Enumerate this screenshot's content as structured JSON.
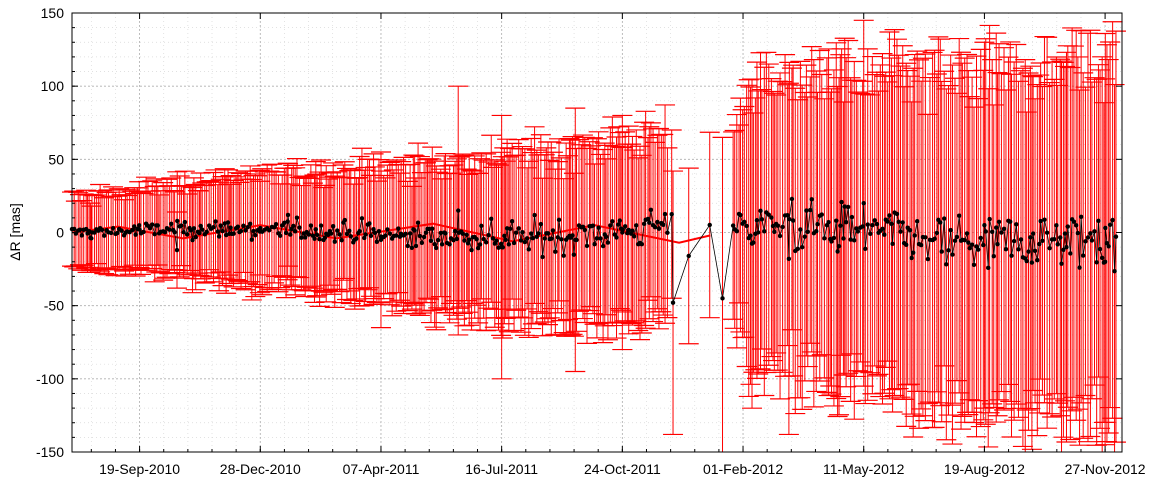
{
  "chart_data": {
    "type": "scatter",
    "title": "",
    "xlabel": "",
    "ylabel": "ΔR [mas]",
    "x_tick_labels": [
      "19-Sep-2010",
      "28-Dec-2010",
      "07-Apr-2011",
      "16-Jul-2011",
      "24-Oct-2011",
      "01-Feb-2012",
      "11-May-2012",
      "19-Aug-2012",
      "27-Nov-2012"
    ],
    "xlim": [
      "2010-07-25",
      "2012-12-11"
    ],
    "y_tick_labels": [
      "150",
      "100",
      "50",
      "0",
      "-50",
      "-100",
      "-150"
    ],
    "ylim": [
      -150,
      150
    ],
    "grid": true,
    "series": [
      {
        "style": "points with error bars, joined by thin line",
        "color": "#000000",
        "error_color": "#ff0000",
        "segments": [
          {
            "x": [
              "2010-07-25",
              "2012-02-04"
            ],
            "y_mean": 0,
            "y_amplitude_start": 6,
            "y_amplitude_end": 18,
            "error_start": 24,
            "error_end": 72
          },
          {
            "x": [
              "2012-02-04",
              "2012-12-07"
            ],
            "y_mean": 0,
            "y_amplitude_start": 22,
            "y_amplitude_end": 28,
            "error_start": 100,
            "error_end": 125
          }
        ],
        "sample_points": [
          {
            "x": "2010-08-10",
            "y": -4,
            "err": 22
          },
          {
            "x": "2010-09-19",
            "y": 2,
            "err": 26
          },
          {
            "x": "2010-10-20",
            "y": -12,
            "err": 26
          },
          {
            "x": "2010-12-28",
            "y": 3,
            "err": 32
          },
          {
            "x": "2011-01-20",
            "y": 12,
            "err": 35
          },
          {
            "x": "2011-04-07",
            "y": -5,
            "err": 60
          },
          {
            "x": "2011-06-10",
            "y": 15,
            "err": 85
          },
          {
            "x": "2011-07-16",
            "y": -10,
            "err": 90
          },
          {
            "x": "2011-09-15",
            "y": -5,
            "err": 90
          },
          {
            "x": "2011-10-24",
            "y": 0,
            "err": 80
          },
          {
            "x": "2011-12-05",
            "y": -48,
            "err": 90
          },
          {
            "x": "2011-12-18",
            "y": -16,
            "err": 60
          },
          {
            "x": "2012-01-15",
            "y": -45,
            "err": 110
          },
          {
            "x": "2012-03-10",
            "y": -18,
            "err": 120
          },
          {
            "x": "2012-05-11",
            "y": 20,
            "err": 125
          },
          {
            "x": "2012-08-19",
            "y": 5,
            "err": 125
          },
          {
            "x": "2012-11-27",
            "y": -20,
            "err": 125
          }
        ]
      },
      {
        "style": "model curve",
        "color": "#ff0000",
        "description_points": [
          {
            "x": "2010-07-25",
            "y": 0
          },
          {
            "x": "2010-09-01",
            "y": 4
          },
          {
            "x": "2010-10-25",
            "y": -4
          },
          {
            "x": "2010-12-28",
            "y": 5
          },
          {
            "x": "2011-03-01",
            "y": -4
          },
          {
            "x": "2011-05-20",
            "y": 6
          },
          {
            "x": "2011-07-25",
            "y": -6
          },
          {
            "x": "2011-10-01",
            "y": 5
          },
          {
            "x": "2011-12-10",
            "y": -7
          },
          {
            "x": "2012-01-05",
            "y": -2
          }
        ]
      }
    ]
  }
}
